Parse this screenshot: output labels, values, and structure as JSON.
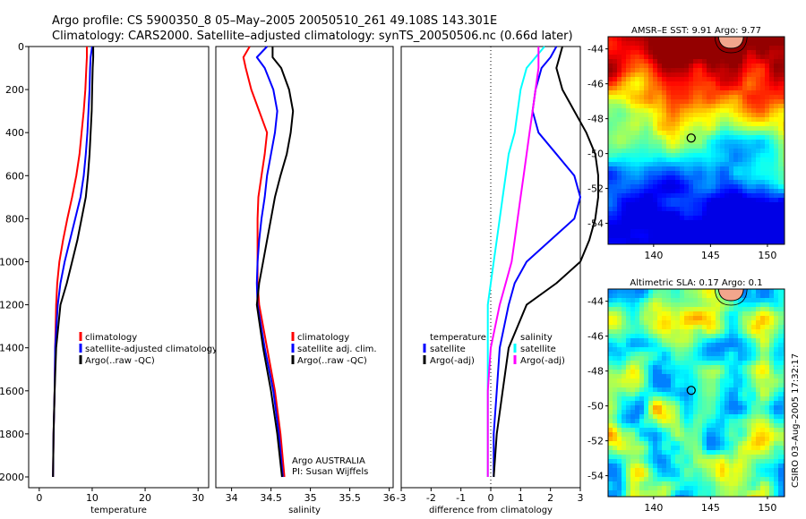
{
  "header": {
    "title_line1": "Argo profile: CS 5900350_8 05–May–2005 20050510_261 49.108S 143.301E",
    "title_line2": "Climatology: CARS2000. Satellite–adjusted climatology: synTS_20050506.nc (0.66d later)"
  },
  "credits": {
    "group": "Argo AUSTRALIA",
    "pi": "PI: Susan Wijffels",
    "stamp": "CSIRO 03–Aug–2005 17:32:17"
  },
  "colors": {
    "climatology": "#ff0000",
    "satellite": "#0000ff",
    "argo": "#000000",
    "temperature": "#00ffff",
    "salinity": "#ff00ff"
  },
  "chart_data": [
    {
      "id": "temp",
      "type": "line",
      "xlabel": "temperature",
      "xlim": [
        -2,
        32
      ],
      "xticks": [
        0,
        10,
        20,
        30
      ],
      "ylim": [
        2050,
        0
      ],
      "yticks": [
        0,
        200,
        400,
        600,
        800,
        1000,
        1200,
        1400,
        1600,
        1800,
        2000
      ],
      "legend": [
        "climatology",
        "satellite-adjusted climatology",
        "Argo(..raw -QC)"
      ],
      "series": [
        {
          "name": "climatology",
          "color": "#ff0000",
          "x": [
            9.0,
            9.0,
            8.9,
            8.7,
            8.4,
            8.0,
            7.6,
            7.0,
            6.2,
            5.3,
            4.5,
            3.8,
            3.4,
            3.2,
            3.0,
            2.9,
            2.7,
            2.6
          ],
          "y": [
            0,
            50,
            100,
            200,
            300,
            400,
            500,
            600,
            700,
            800,
            900,
            1000,
            1100,
            1200,
            1400,
            1600,
            1800,
            2000
          ]
        },
        {
          "name": "satellite-adjusted climatology",
          "color": "#0000ff",
          "x": [
            10.0,
            9.7,
            9.6,
            9.5,
            9.3,
            9.1,
            8.8,
            8.4,
            7.8,
            6.8,
            5.8,
            4.8,
            4.0,
            3.5,
            3.0,
            2.9,
            2.7,
            2.6
          ],
          "y": [
            0,
            50,
            100,
            200,
            300,
            400,
            500,
            600,
            700,
            800,
            900,
            1000,
            1100,
            1200,
            1400,
            1600,
            1800,
            2000
          ]
        },
        {
          "name": "Argo(..raw -QC)",
          "color": "#000000",
          "x": [
            10.2,
            10.2,
            10.1,
            10.0,
            9.9,
            9.7,
            9.5,
            9.2,
            8.8,
            8.0,
            7.2,
            6.2,
            5.2,
            4.0,
            3.2,
            2.9,
            2.7,
            2.6
          ],
          "y": [
            0,
            50,
            100,
            200,
            300,
            400,
            500,
            600,
            700,
            800,
            900,
            1000,
            1100,
            1200,
            1400,
            1600,
            1800,
            2000
          ]
        }
      ]
    },
    {
      "id": "salt",
      "type": "line",
      "xlabel": "salinity",
      "xlim": [
        33.8,
        36.05
      ],
      "xticks": [
        34,
        34.5,
        35,
        35.5,
        36
      ],
      "ylim": [
        2050,
        0
      ],
      "legend": [
        "climatology",
        "satellite adj. clim.",
        "Argo(..raw -QC)"
      ],
      "series": [
        {
          "name": "climatology",
          "color": "#ff0000",
          "x": [
            34.23,
            34.15,
            34.18,
            34.25,
            34.35,
            34.45,
            34.42,
            34.38,
            34.34,
            34.33,
            34.33,
            34.33,
            34.33,
            34.35,
            34.45,
            34.55,
            34.62,
            34.67
          ],
          "y": [
            0,
            50,
            100,
            200,
            300,
            400,
            500,
            600,
            700,
            800,
            900,
            1000,
            1100,
            1200,
            1400,
            1600,
            1800,
            2000
          ]
        },
        {
          "name": "satellite adj. clim.",
          "color": "#0000ff",
          "x": [
            34.45,
            34.32,
            34.42,
            34.53,
            34.58,
            34.55,
            34.5,
            34.45,
            34.42,
            34.38,
            34.35,
            34.33,
            34.32,
            34.33,
            34.42,
            34.53,
            34.6,
            34.65
          ],
          "y": [
            0,
            50,
            100,
            200,
            300,
            400,
            500,
            600,
            700,
            800,
            900,
            1000,
            1100,
            1200,
            1400,
            1600,
            1800,
            2000
          ]
        },
        {
          "name": "Argo(..raw -QC)",
          "color": "#000000",
          "x": [
            34.52,
            34.52,
            34.63,
            34.73,
            34.78,
            34.75,
            34.7,
            34.62,
            34.55,
            34.5,
            34.45,
            34.4,
            34.35,
            34.32,
            34.4,
            34.5,
            34.58,
            34.64
          ],
          "y": [
            0,
            50,
            100,
            200,
            300,
            400,
            500,
            600,
            700,
            800,
            900,
            1000,
            1100,
            1200,
            1400,
            1600,
            1800,
            2000
          ]
        }
      ]
    },
    {
      "id": "diff",
      "type": "line",
      "xlabel": "difference from climatology",
      "xlim": [
        -3,
        3
      ],
      "xticks": [
        -3,
        -2,
        -1,
        0,
        1,
        2,
        3
      ],
      "ylim": [
        2050,
        0
      ],
      "legend_left": [
        "temperature",
        "satellite",
        "Argo(-adj)"
      ],
      "legend_right": [
        "salinity",
        "satellite",
        "Argo(-adj)"
      ],
      "series": [
        {
          "name": "temperature satellite",
          "color": "#0000ff",
          "x": [
            2.2,
            2.0,
            1.7,
            1.5,
            1.4,
            1.6,
            2.2,
            2.8,
            3.0,
            2.8,
            2.0,
            1.2,
            0.8,
            0.6,
            0.3,
            0.2,
            0.1,
            0.1
          ],
          "y": [
            0,
            50,
            100,
            200,
            300,
            400,
            500,
            600,
            700,
            800,
            900,
            1000,
            1100,
            1200,
            1400,
            1600,
            1800,
            2000
          ]
        },
        {
          "name": "temperature Argo(-adj)",
          "color": "#000000",
          "x": [
            2.4,
            2.3,
            2.2,
            2.4,
            2.8,
            3.2,
            3.5,
            3.6,
            3.6,
            3.5,
            3.3,
            3.0,
            2.2,
            1.2,
            0.6,
            0.4,
            0.2,
            0.1
          ],
          "y": [
            0,
            50,
            100,
            200,
            300,
            400,
            500,
            600,
            700,
            800,
            900,
            1000,
            1100,
            1200,
            1400,
            1600,
            1800,
            2000
          ]
        },
        {
          "name": "salinity satellite",
          "color": "#00ffff",
          "x": [
            1.8,
            1.5,
            1.2,
            1.0,
            0.9,
            0.8,
            0.6,
            0.5,
            0.4,
            0.3,
            0.2,
            0.1,
            0.0,
            -0.1,
            -0.1,
            -0.1,
            -0.1,
            -0.1
          ],
          "y": [
            0,
            50,
            100,
            200,
            300,
            400,
            500,
            600,
            700,
            800,
            900,
            1000,
            1100,
            1200,
            1400,
            1600,
            1800,
            2000
          ]
        },
        {
          "name": "salinity Argo(-adj)",
          "color": "#ff00ff",
          "x": [
            1.6,
            1.6,
            1.6,
            1.5,
            1.4,
            1.3,
            1.2,
            1.1,
            1.0,
            0.9,
            0.8,
            0.7,
            0.5,
            0.3,
            0.0,
            -0.1,
            -0.1,
            -0.1
          ],
          "y": [
            0,
            50,
            100,
            200,
            300,
            400,
            500,
            600,
            700,
            800,
            900,
            1000,
            1100,
            1200,
            1400,
            1600,
            1800,
            2000
          ]
        }
      ]
    },
    {
      "id": "sst",
      "type": "heatmap",
      "title": "AMSR–E SST: 9.91 Argo: 9.77",
      "xlim": [
        136,
        151.5
      ],
      "ylim": [
        -55.2,
        -43.3
      ],
      "xticks": [
        140,
        145,
        150
      ],
      "yticks": [
        -44,
        -46,
        -48,
        -50,
        -52,
        -54
      ],
      "argo_position": {
        "lon": 143.301,
        "lat": -49.108
      }
    },
    {
      "id": "sla",
      "type": "heatmap",
      "title": "Altimetric SLA: 0.17 Argo: 0.1",
      "xlim": [
        136,
        151.5
      ],
      "ylim": [
        -55.2,
        -43.3
      ],
      "xticks": [
        140,
        145,
        150
      ],
      "yticks": [
        -44,
        -46,
        -48,
        -50,
        -52,
        -54
      ],
      "argo_position": {
        "lon": 143.301,
        "lat": -49.108
      }
    }
  ]
}
